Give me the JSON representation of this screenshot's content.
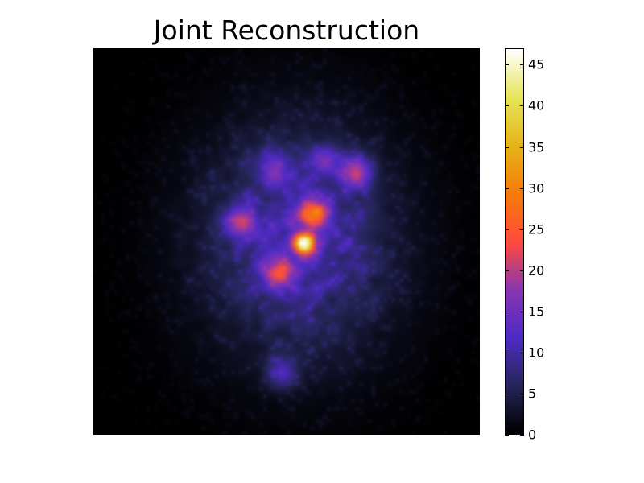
{
  "chart_data": {
    "type": "heatmap",
    "title": "Joint Reconstruction",
    "xlabel": "",
    "ylabel": "",
    "colorbar": {
      "range": [
        0,
        47
      ],
      "ticks": [
        0,
        5,
        10,
        15,
        20,
        25,
        30,
        35,
        40,
        45
      ],
      "tick_labels": [
        "0",
        "5",
        "10",
        "15",
        "20",
        "25",
        "30",
        "35",
        "40",
        "45"
      ],
      "colormap": "CMRmap-like"
    },
    "colormap_stops": [
      "#000000",
      "#26265a",
      "#4d2bc4",
      "#8a35b0",
      "#ff4c3d",
      "#f57c0a",
      "#e5b41a",
      "#e6e55a",
      "#ffffff"
    ],
    "grid": false,
    "features": {
      "peak_value": 47,
      "bright_blobs": [
        {
          "x": 0.545,
          "y": 0.505,
          "value": 46
        },
        {
          "x": 0.57,
          "y": 0.43,
          "value": 27
        },
        {
          "x": 0.48,
          "y": 0.58,
          "value": 23
        },
        {
          "x": 0.38,
          "y": 0.45,
          "value": 22
        },
        {
          "x": 0.68,
          "y": 0.32,
          "value": 24
        },
        {
          "x": 0.47,
          "y": 0.31,
          "value": 18
        },
        {
          "x": 0.6,
          "y": 0.29,
          "value": 17
        },
        {
          "x": 0.49,
          "y": 0.84,
          "value": 17
        }
      ]
    }
  }
}
